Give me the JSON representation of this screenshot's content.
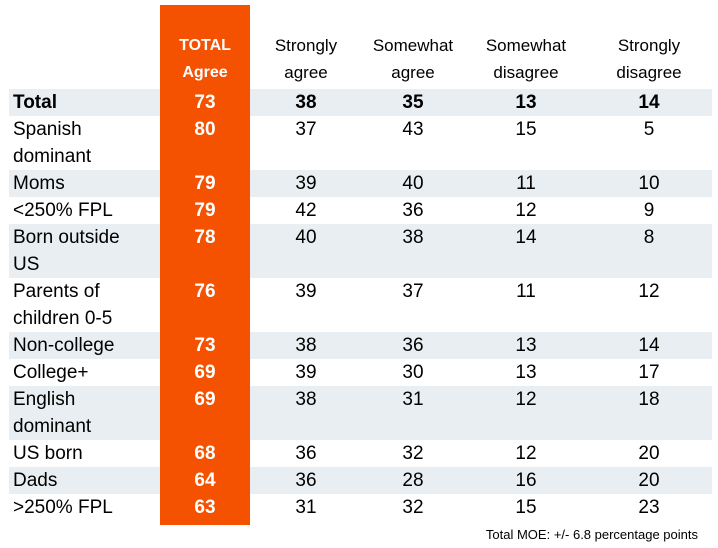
{
  "chart_data": {
    "type": "table",
    "columns": [
      {
        "key": "total_agree",
        "label": "TOTAL Agree"
      },
      {
        "key": "strongly_agree",
        "label": "Strongly agree"
      },
      {
        "key": "somewhat_agree",
        "label": "Somewhat agree"
      },
      {
        "key": "somewhat_disagree",
        "label": "Somewhat disagree"
      },
      {
        "key": "strongly_disagree",
        "label": "Strongly disagree"
      }
    ],
    "header_lines": [
      [
        "TOTAL",
        "Agree"
      ],
      [
        "Strongly",
        "agree"
      ],
      [
        "Somewhat",
        "agree"
      ],
      [
        "Somewhat",
        "disagree"
      ],
      [
        "Strongly",
        "disagree"
      ]
    ],
    "rows": [
      {
        "label": "Total",
        "lines": [
          "Total"
        ],
        "values": [
          73,
          38,
          35,
          13,
          14
        ],
        "bold": true
      },
      {
        "label": "Spanish dominant",
        "lines": [
          "Spanish",
          "dominant"
        ],
        "values": [
          80,
          37,
          43,
          15,
          5
        ]
      },
      {
        "label": "Moms",
        "lines": [
          "Moms"
        ],
        "values": [
          79,
          39,
          40,
          11,
          10
        ]
      },
      {
        "label": "<250% FPL",
        "lines": [
          "<250% FPL"
        ],
        "values": [
          79,
          42,
          36,
          12,
          9
        ]
      },
      {
        "label": "Born outside US",
        "lines": [
          "Born outside",
          "US"
        ],
        "values": [
          78,
          40,
          38,
          14,
          8
        ]
      },
      {
        "label": "Parents of children 0-5",
        "lines": [
          "Parents of",
          "children 0-5"
        ],
        "values": [
          76,
          39,
          37,
          11,
          12
        ]
      },
      {
        "label": "Non-college",
        "lines": [
          "Non-college"
        ],
        "values": [
          73,
          38,
          36,
          13,
          14
        ]
      },
      {
        "label": "College+",
        "lines": [
          "College+"
        ],
        "values": [
          69,
          39,
          30,
          13,
          17
        ]
      },
      {
        "label": "English dominant",
        "lines": [
          "English",
          "dominant"
        ],
        "values": [
          69,
          38,
          31,
          12,
          18
        ]
      },
      {
        "label": "US born",
        "lines": [
          "US born"
        ],
        "values": [
          68,
          36,
          32,
          12,
          20
        ]
      },
      {
        "label": "Dads",
        "lines": [
          "Dads"
        ],
        "values": [
          64,
          36,
          28,
          16,
          20
        ]
      },
      {
        "label": ">250% FPL",
        "lines": [
          ">250% FPL"
        ],
        "values": [
          63,
          31,
          32,
          15,
          23
        ]
      }
    ],
    "footnote": "Total MOE: +/- 6.8 percentage points"
  },
  "colors": {
    "accent": "#f45101",
    "band": "#e8eef1",
    "text": "#000000",
    "on_accent": "#ffffff"
  }
}
